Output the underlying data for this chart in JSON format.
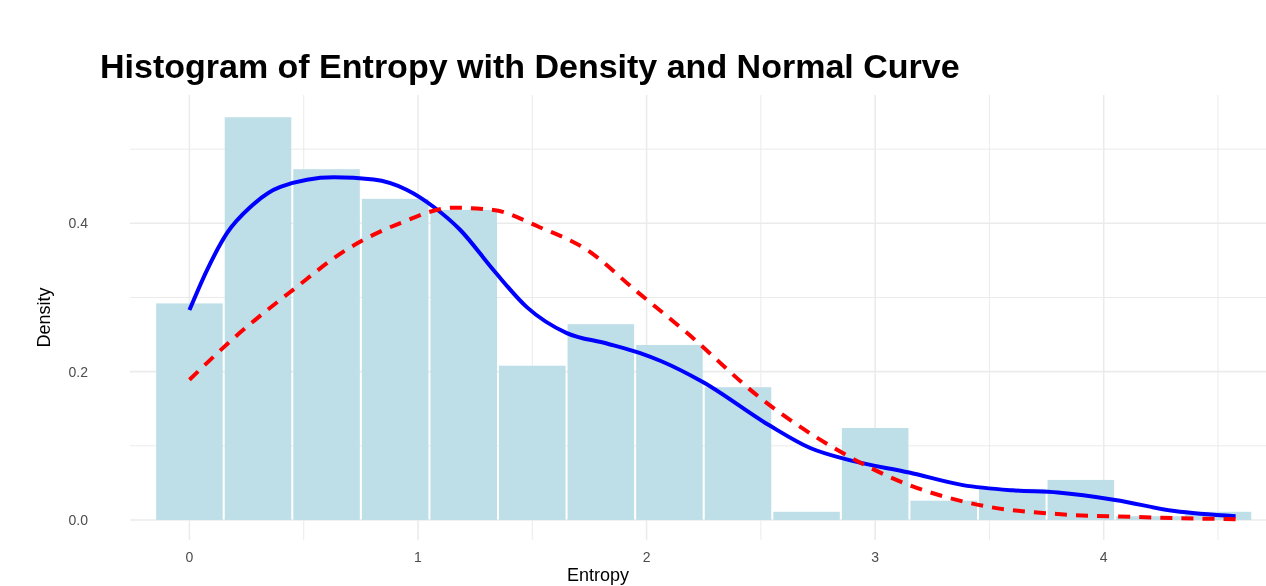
{
  "chart_data": {
    "type": "histogram",
    "title": "Histogram of Entropy with Density and Normal Curve",
    "xlabel": "Entropy",
    "ylabel": "Density",
    "bins": [
      -0.15,
      0.15,
      0.45,
      0.75,
      1.05,
      1.35,
      1.65,
      1.95,
      2.25,
      2.55,
      2.85,
      3.15,
      3.45,
      3.75,
      4.05,
      4.35,
      4.65
    ],
    "values": [
      0.292,
      0.543,
      0.473,
      0.433,
      0.418,
      0.208,
      0.264,
      0.236,
      0.179,
      0.011,
      0.124,
      0.026,
      0.042,
      0.054,
      0.005,
      0.011
    ],
    "color": "#bfdfe8",
    "series": [
      {
        "type": "line",
        "color": "#0000ff",
        "line_style": "solid",
        "x": [
          0,
          0.077,
          0.165,
          0.267,
          0.398,
          0.631,
          0.806,
          0.952,
          1.069,
          1.185,
          1.33,
          1.476,
          1.651,
          1.826,
          1.972,
          2.065,
          2.246,
          2.535,
          2.716,
          2.896,
          3.149,
          3.384,
          3.601,
          3.8,
          4.05,
          4.31,
          4.577
        ],
        "values": [
          0.283,
          0.337,
          0.387,
          0.422,
          0.449,
          0.462,
          0.459,
          0.445,
          0.422,
          0.391,
          0.337,
          0.287,
          0.252,
          0.238,
          0.225,
          0.214,
          0.186,
          0.128,
          0.097,
          0.08,
          0.064,
          0.047,
          0.04,
          0.037,
          0.027,
          0.012,
          0.005
        ]
      },
      {
        "type": "line",
        "color": "#ff0000",
        "line_style": "dashed",
        "x": [
          0,
          0.219,
          0.452,
          0.685,
          0.92,
          1.155,
          1.33,
          1.53,
          1.74,
          1.95,
          2.174,
          2.5,
          2.82,
          3.15,
          3.475,
          3.8,
          4.14,
          4.577
        ],
        "values": [
          0.189,
          0.252,
          0.31,
          0.364,
          0.4,
          0.421,
          0.418,
          0.395,
          0.364,
          0.31,
          0.253,
          0.164,
          0.097,
          0.047,
          0.019,
          0.008,
          0.004,
          0.001
        ]
      }
    ],
    "xlim": [
      -0.26,
      4.71
    ],
    "ylim": [
      -0.027,
      0.573
    ],
    "xticks": [
      0,
      {
        "value": 0.5,
        "label": null
      },
      1,
      {
        "value": 1.5,
        "label": null
      },
      2,
      {
        "value": 2.5,
        "label": null
      },
      3,
      {
        "value": 3.5,
        "label": null
      },
      4,
      {
        "value": 4.5,
        "label": null
      }
    ],
    "yticks": [
      {
        "value": 0,
        "label": "0.0"
      },
      {
        "value": 0.1,
        "label": null
      },
      0.2,
      {
        "value": 0.3,
        "label": null
      },
      0.4,
      {
        "value": 0.5,
        "label": null
      }
    ],
    "grid": true
  }
}
